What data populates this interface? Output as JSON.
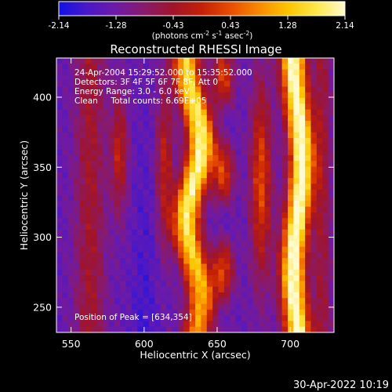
{
  "colorbar": {
    "tick_labels": [
      "-2.14",
      "-1.28",
      "-0.43",
      "0.43",
      "1.28",
      "2.14"
    ],
    "units_main": "(photons cm",
    "units_sup1": "-2",
    "units_mid1": " s",
    "units_sup2": "-1",
    "units_mid2": " asec",
    "units_sup3": "-2",
    "units_end": ")",
    "colors": [
      "#1212e6",
      "#4a18c8",
      "#6e1aa6",
      "#8a1a6a",
      "#a0142a",
      "#c42008",
      "#e84d00",
      "#f88a00",
      "#fcc400",
      "#fde84a",
      "#fffbd0"
    ]
  },
  "chart_data": {
    "type": "heatmap",
    "title": "Reconstructed RHESSI Image",
    "xlabel": "Heliocentric X (arcsec)",
    "ylabel": "Heliocentric Y (arcsec)",
    "xlim": [
      540,
      730
    ],
    "ylim": [
      232,
      428
    ],
    "xticks": [
      "550",
      "600",
      "650",
      "700"
    ],
    "yticks": [
      "250",
      "300",
      "350",
      "400"
    ],
    "value_range": [
      -2.14,
      2.14
    ],
    "annotations": [
      "24-Apr-2004 15:29:52.000 to 15:35:52.000",
      "Detectors: 3F 4F 5F 6F 7F 8F, Att 0",
      "Energy Range: 3.0 - 6.0 keV",
      "Clean     Total counts: 6.69E+05"
    ],
    "peak_label": "Position of Peak = [634,354]",
    "peak": [
      634,
      354
    ]
  },
  "footer": {
    "timestamp": "30-Apr-2022 10:19"
  }
}
